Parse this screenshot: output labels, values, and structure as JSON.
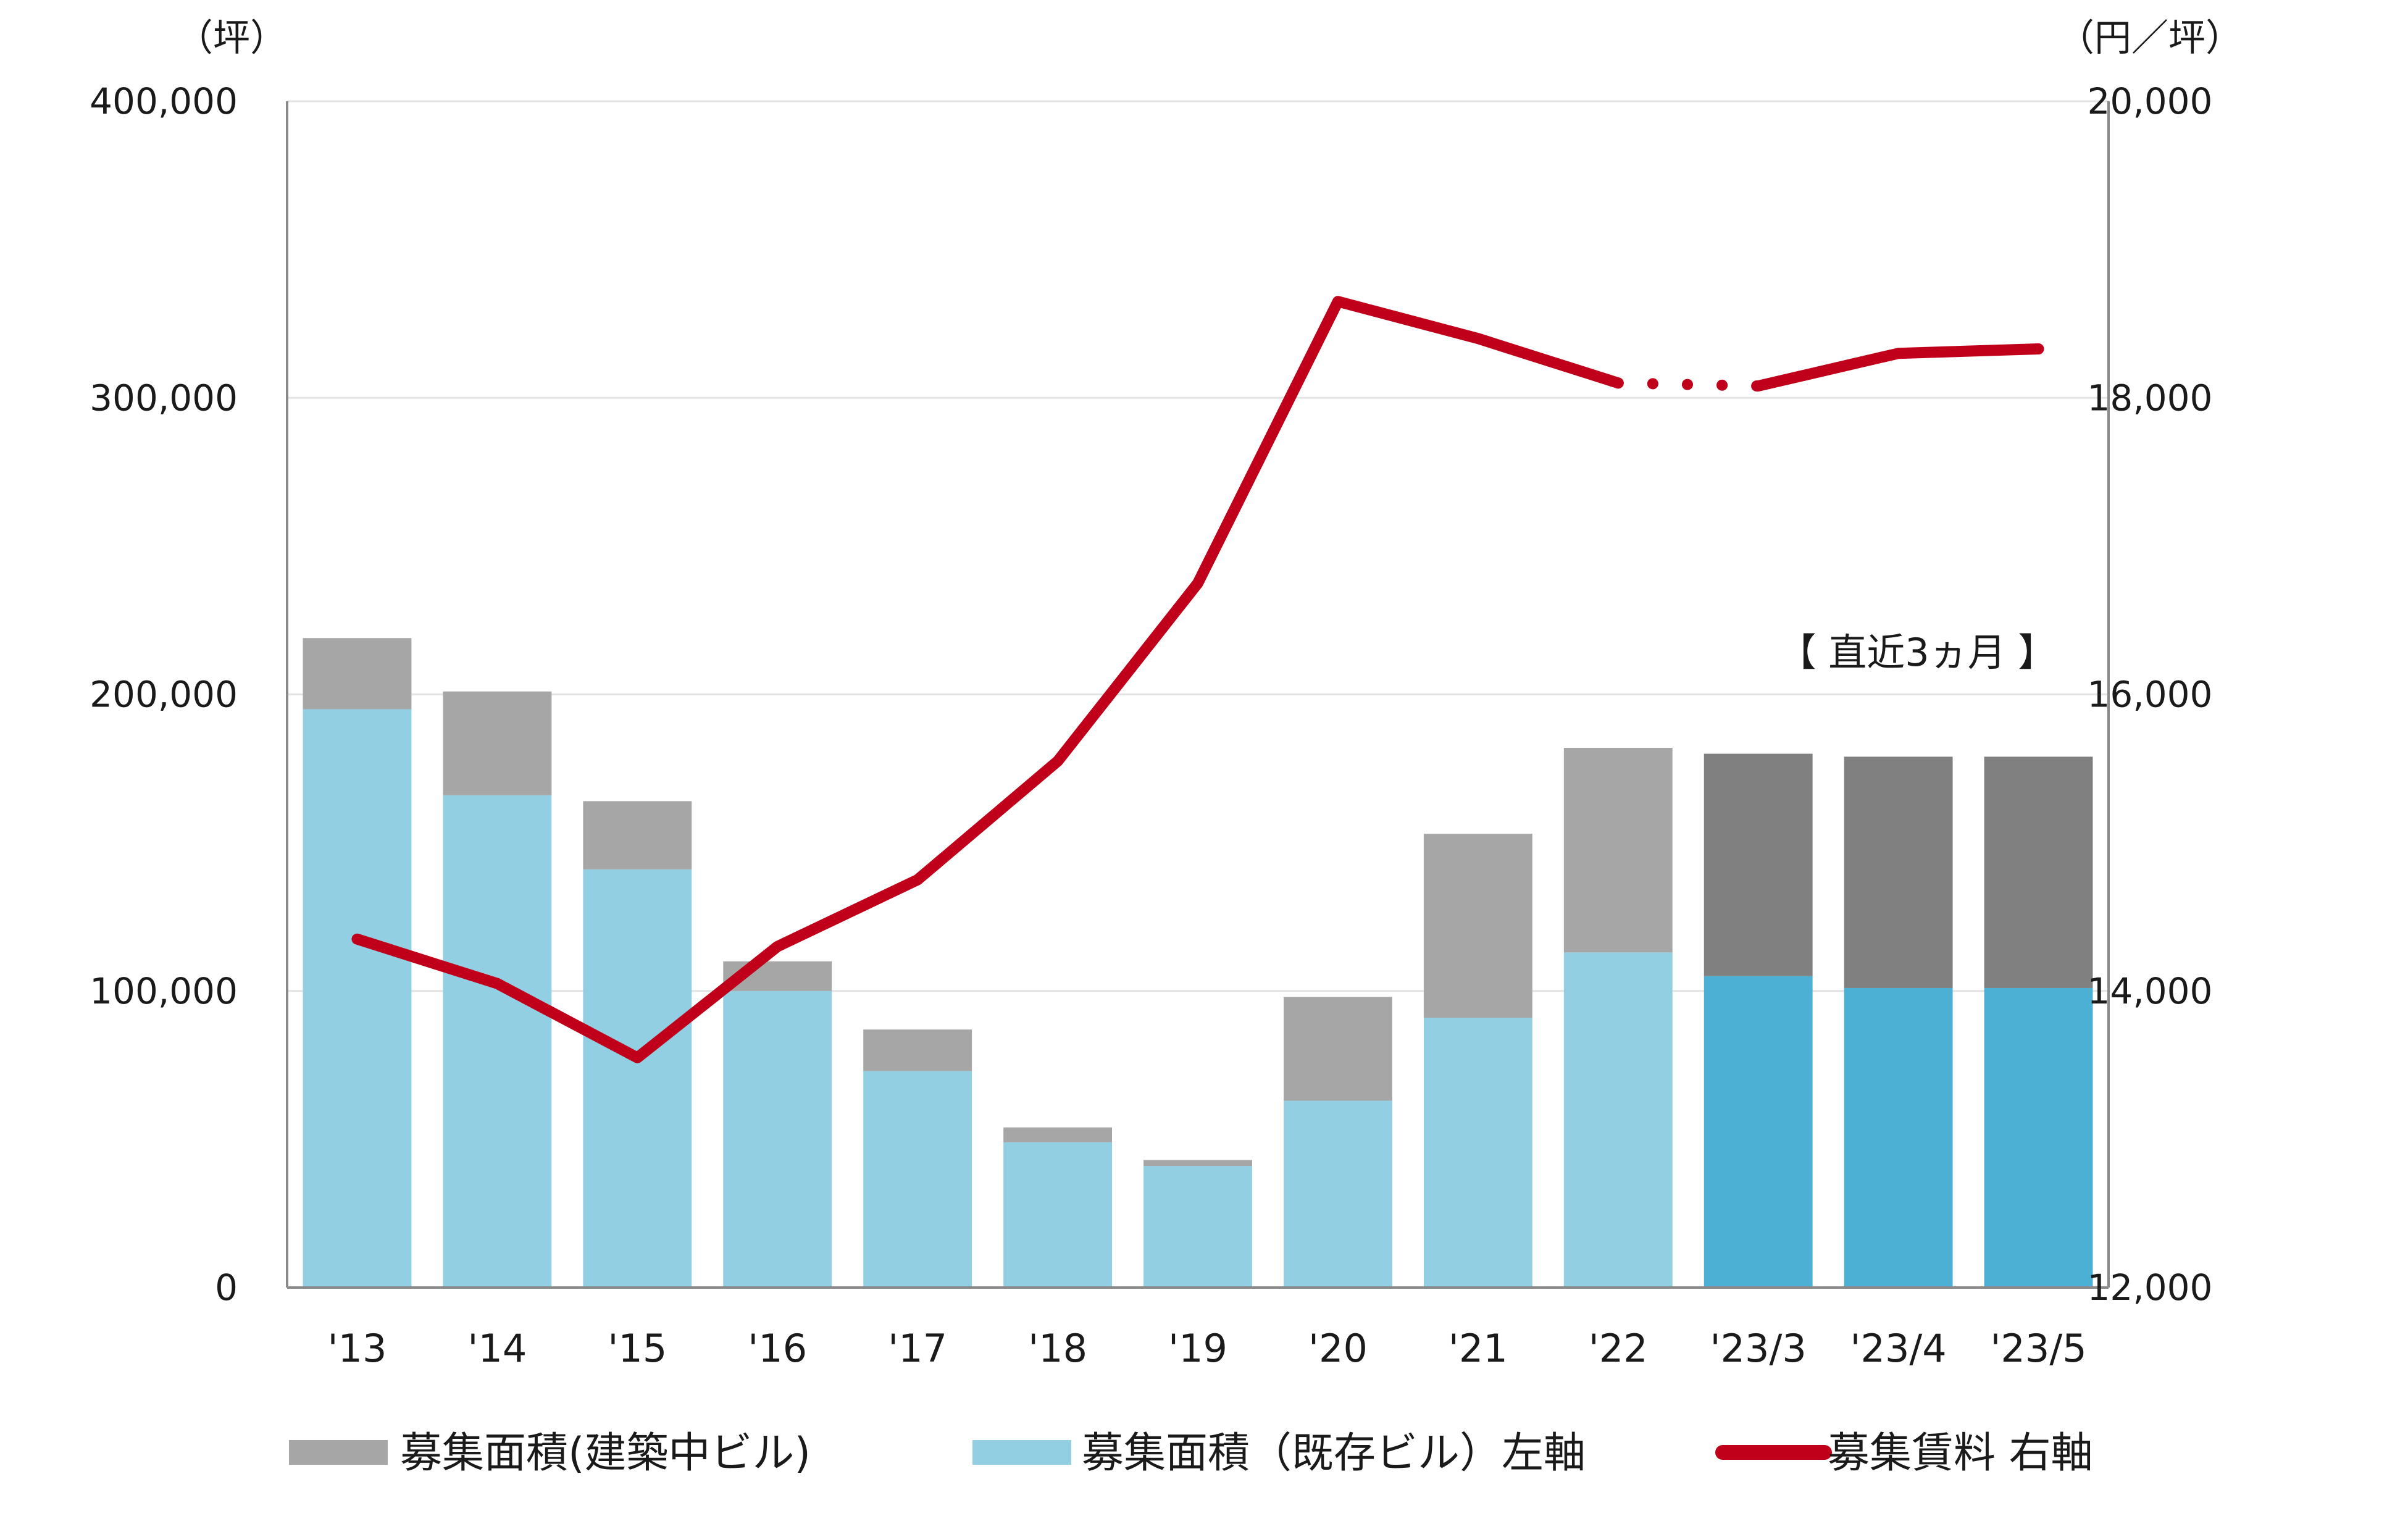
{
  "chart_data": {
    "type": "bar",
    "categories": [
      "'13",
      "'14",
      "'15",
      "'16",
      "'17",
      "'18",
      "'19",
      "'20",
      "'21",
      "'22",
      "'23/3",
      "'23/4",
      "'23/5"
    ],
    "series": [
      {
        "name": "募集面積（既存ビル）左軸",
        "kind": "bar",
        "axis": "left",
        "values": [
          195000,
          166000,
          141000,
          100000,
          73000,
          49000,
          41000,
          63000,
          91000,
          113000,
          105000,
          101000,
          101000
        ]
      },
      {
        "name": "募集面積（建築中ビル）",
        "kind": "bar",
        "axis": "left",
        "values": [
          24000,
          35000,
          23000,
          10000,
          14000,
          5000,
          2000,
          35000,
          62000,
          69000,
          75000,
          78000,
          78000
        ]
      },
      {
        "name": "募集賃料 右軸",
        "kind": "line",
        "axis": "right",
        "values": [
          14350,
          14050,
          13550,
          14300,
          14750,
          15550,
          16750,
          18650,
          18400,
          18100,
          18080,
          18300,
          18330
        ]
      }
    ],
    "left_axis": {
      "unit": "（坪）",
      "ylim": [
        0,
        400000
      ],
      "ticks": [
        "0",
        "100,000",
        "200,000",
        "300,000",
        "400,000"
      ]
    },
    "right_axis": {
      "unit": "（円／坪）",
      "ylim": [
        12000,
        20000
      ],
      "ticks": [
        "12,000",
        "14,000",
        "16,000",
        "18,000",
        "20,000"
      ]
    },
    "annotation": "【 直近3ヵ月 】",
    "recent_categories": [
      "'23/3",
      "'23/4",
      "'23/5"
    ],
    "dotted_segment": [
      "'22",
      "'23/3"
    ],
    "legend": {
      "placement": "bottom",
      "items": [
        {
          "label": "募集面積(建築中ビル)",
          "swatch": "bar",
          "color": "#a6a6a6"
        },
        {
          "label": "募集面積（既存ビル）左軸",
          "swatch": "bar",
          "color": "#92cfe3"
        },
        {
          "label": "募集賃料 右軸",
          "swatch": "line",
          "color": "#c0001a"
        }
      ]
    },
    "grid": true,
    "colors": {
      "existing": "#92cfe3",
      "existing_recent": "#4bb0d4",
      "construction": "#a6a6a6",
      "construction_recent": "#808080",
      "rent_line": "#c0001a",
      "grid": "#e3e3e3",
      "axis": "#8a8a8a"
    }
  }
}
